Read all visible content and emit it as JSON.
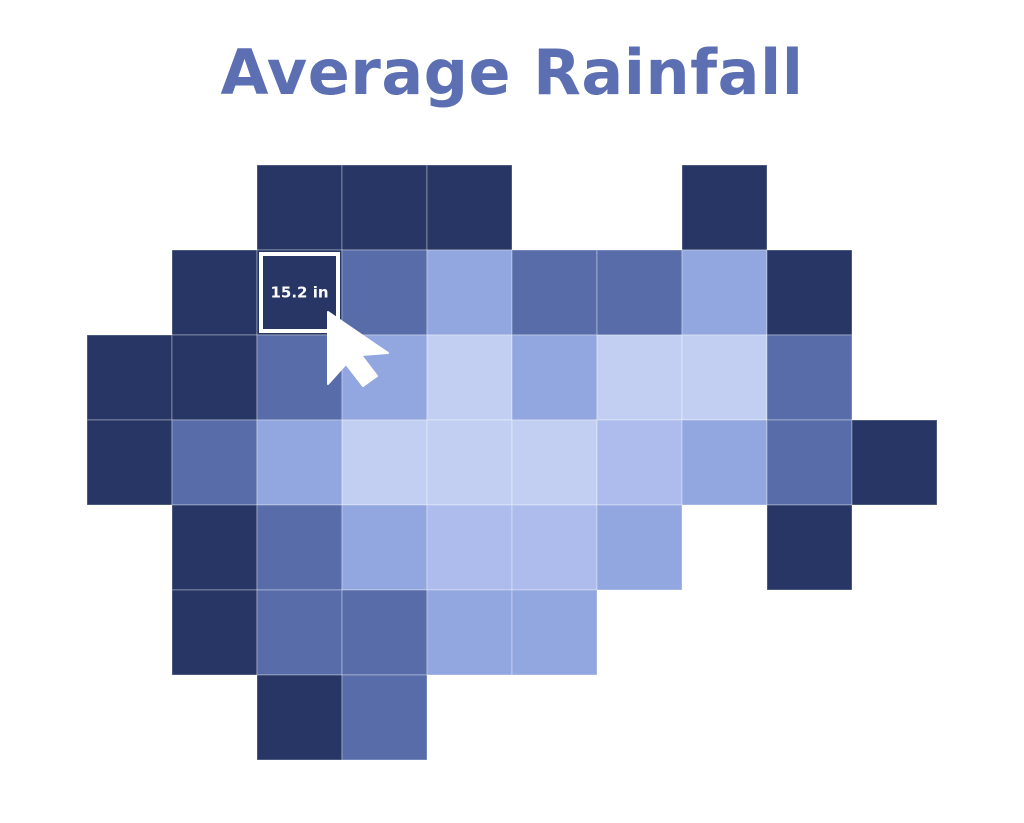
{
  "chart_data": {
    "type": "heatmap",
    "title": "Average Rainfall",
    "unit": "in",
    "levels": [
      {
        "level": 1,
        "color": "#273664"
      },
      {
        "level": 2,
        "color": "#586ca9"
      },
      {
        "level": 3,
        "color": "#92a6df"
      },
      {
        "level": 4,
        "color": "#adbcec"
      },
      {
        "level": 5,
        "color": "#c2cff2"
      }
    ],
    "grid": [
      [
        0,
        0,
        1,
        1,
        1,
        0,
        0,
        1,
        0,
        0
      ],
      [
        0,
        1,
        1,
        2,
        3,
        2,
        2,
        3,
        1,
        0
      ],
      [
        1,
        1,
        2,
        3,
        5,
        3,
        5,
        5,
        2,
        0
      ],
      [
        1,
        2,
        3,
        5,
        5,
        5,
        4,
        3,
        2,
        1
      ],
      [
        0,
        1,
        2,
        3,
        4,
        4,
        3,
        0,
        1,
        0
      ],
      [
        0,
        1,
        2,
        2,
        3,
        3,
        0,
        0,
        0,
        0
      ],
      [
        0,
        0,
        1,
        2,
        0,
        0,
        0,
        0,
        0,
        0
      ]
    ],
    "tooltip": {
      "row": 1,
      "col": 2,
      "text": "15.2 in"
    }
  },
  "cursor_icon": "arrow-cursor-icon"
}
